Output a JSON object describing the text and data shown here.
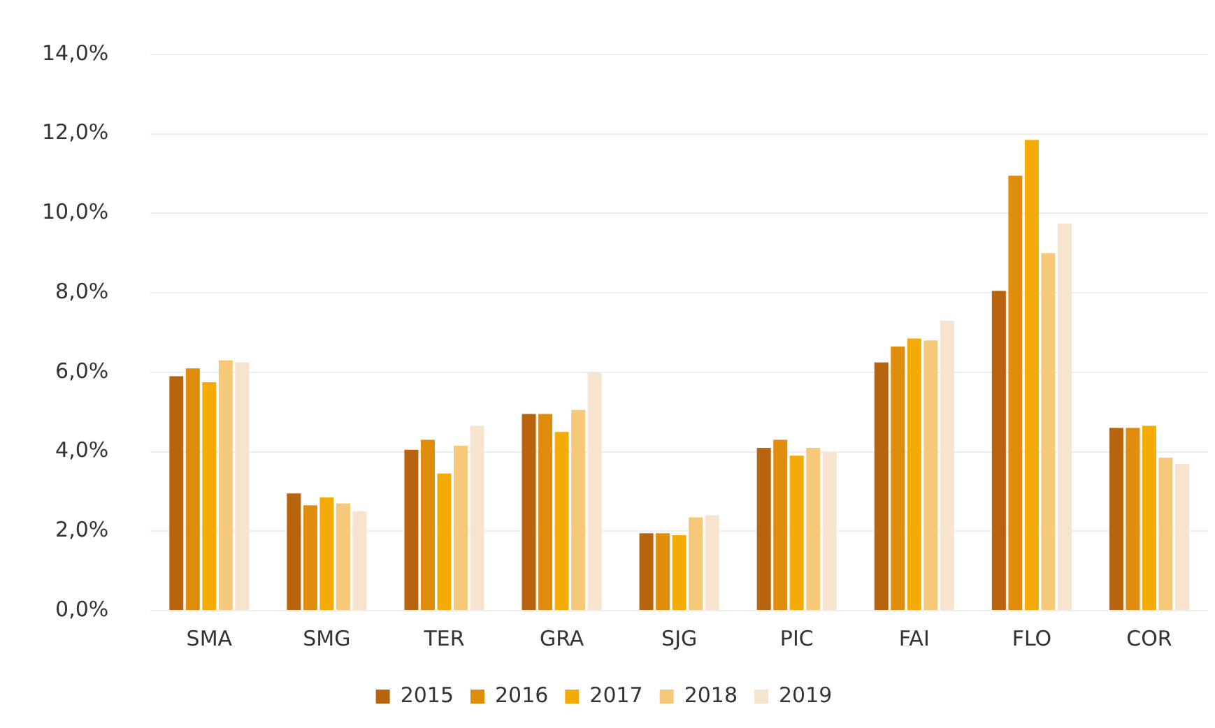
{
  "chart_data": {
    "type": "bar",
    "categories": [
      "SMA",
      "SMG",
      "TER",
      "GRA",
      "SJG",
      "PIC",
      "FAI",
      "FLO",
      "COR"
    ],
    "series": [
      {
        "name": "2015",
        "color": "#b8640f",
        "values": [
          5.9,
          2.95,
          4.05,
          4.95,
          1.95,
          4.1,
          6.25,
          8.05,
          4.6
        ]
      },
      {
        "name": "2016",
        "color": "#e08c0c",
        "values": [
          6.1,
          2.65,
          4.3,
          4.95,
          1.95,
          4.3,
          6.65,
          10.95,
          4.6
        ]
      },
      {
        "name": "2017",
        "color": "#f5ab06",
        "values": [
          5.75,
          2.85,
          3.45,
          4.5,
          1.9,
          3.9,
          6.85,
          11.85,
          4.65
        ]
      },
      {
        "name": "2018",
        "color": "#f6c97a",
        "values": [
          6.3,
          2.7,
          4.15,
          5.05,
          2.35,
          4.1,
          6.8,
          9.0,
          3.85
        ]
      },
      {
        "name": "2019",
        "color": "#f6e4cf",
        "values": [
          6.25,
          2.5,
          4.65,
          6.0,
          2.4,
          4.0,
          7.3,
          9.75,
          3.7
        ]
      }
    ],
    "ylim": [
      0,
      14
    ],
    "yticks": [
      {
        "value": 0,
        "label": "0,0%"
      },
      {
        "value": 2,
        "label": "2,0%"
      },
      {
        "value": 4,
        "label": "4,0%"
      },
      {
        "value": 6,
        "label": "6,0%"
      },
      {
        "value": 8,
        "label": "8,0%"
      },
      {
        "value": 10,
        "label": "10,0%"
      },
      {
        "value": 12,
        "label": "12,0%"
      },
      {
        "value": 14,
        "label": "14,0%"
      }
    ],
    "grid": "y",
    "legend": "bottom"
  }
}
